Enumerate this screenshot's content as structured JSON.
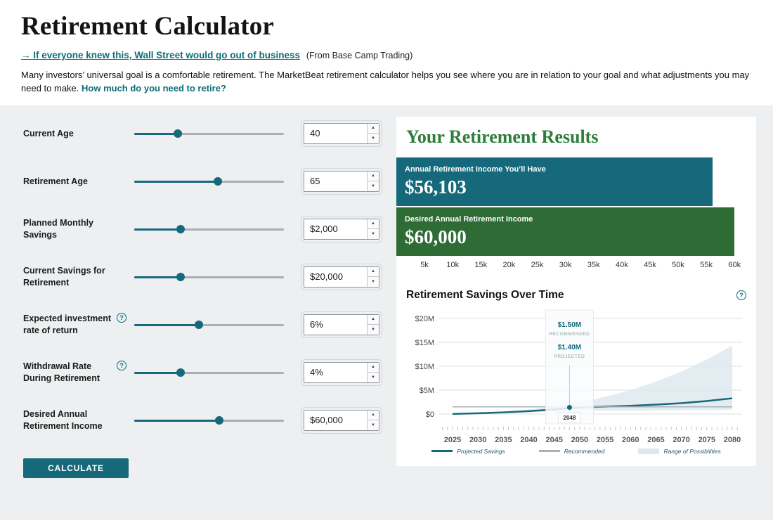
{
  "page": {
    "title": "Retirement Calculator",
    "promo_link": "→ If everyone knew this, Wall Street would go out of business",
    "promo_source": "(From Base Camp Trading)",
    "intro_text": "Many investors’ universal goal is a comfortable retirement. The MarketBeat retirement calculator helps you see where you are in relation to your goal and what adjustments you may need to make.",
    "intro_link": "How much do you need to retire?"
  },
  "form": {
    "fields": [
      {
        "label": "Current Age",
        "value": "40",
        "pct": 29,
        "help": false
      },
      {
        "label": "Retirement Age",
        "value": "65",
        "pct": 56,
        "help": false
      },
      {
        "label": "Planned Monthly Savings",
        "value": "$2,000",
        "pct": 31,
        "help": false
      },
      {
        "label": "Current Savings for Retirement",
        "value": "$20,000",
        "pct": 31,
        "help": false
      },
      {
        "label": "Expected investment rate of return",
        "value": "6%",
        "pct": 43,
        "help": true
      },
      {
        "label": "Withdrawal Rate During Retirement",
        "value": "4%",
        "pct": 31,
        "help": true
      },
      {
        "label": "Desired Annual Retirement Income",
        "value": "$60,000",
        "pct": 57,
        "help": false
      }
    ],
    "calculate_label": "CALCULATE"
  },
  "results": {
    "title": "Your Retirement Results"
  },
  "colors": {
    "accent_teal": "#15697a",
    "accent_green": "#2e6b35",
    "link_teal": "#0b6d78",
    "results_title_green": "#2e7d3c"
  },
  "chart_data": [
    {
      "type": "bar",
      "orientation": "horizontal",
      "title": "Your Retirement Results",
      "xlim": [
        0,
        60000
      ],
      "bars": [
        {
          "label": "Annual Retirement Income You’ll Have",
          "value": 56103,
          "display": "$56,103",
          "color": "#15697a"
        },
        {
          "label": "Desired Annual Retirement Income",
          "value": 60000,
          "display": "$60,000",
          "color": "#2e6b35"
        }
      ],
      "ticks": [
        {
          "value": 5000,
          "label": "5k"
        },
        {
          "value": 10000,
          "label": "10k"
        },
        {
          "value": 15000,
          "label": "15k"
        },
        {
          "value": 20000,
          "label": "20k"
        },
        {
          "value": 25000,
          "label": "25k"
        },
        {
          "value": 30000,
          "label": "30k"
        },
        {
          "value": 35000,
          "label": "35k"
        },
        {
          "value": 40000,
          "label": "40k"
        },
        {
          "value": 45000,
          "label": "45k"
        },
        {
          "value": 50000,
          "label": "50k"
        },
        {
          "value": 55000,
          "label": "55k"
        },
        {
          "value": 60000,
          "label": "60k"
        }
      ]
    },
    {
      "type": "line",
      "title": "Retirement Savings Over Time",
      "x_years": [
        2025,
        2030,
        2035,
        2040,
        2045,
        2050,
        2055,
        2060,
        2065,
        2070,
        2075,
        2080
      ],
      "x_tick_labels": [
        "2025",
        "2030",
        "2035",
        "2040",
        "2045",
        "2050",
        "2055",
        "2060",
        "2065",
        "2070",
        "2075",
        "2080"
      ],
      "ylim_millions": [
        0,
        20
      ],
      "y_gridlines_millions": [
        0,
        5,
        10,
        15,
        20
      ],
      "y_ticks": [
        "$0",
        "$5M",
        "$10M",
        "$15M",
        "$20M"
      ],
      "series": [
        {
          "name": "Projected Savings",
          "color": "#15697a",
          "values_millions": [
            0.02,
            0.16,
            0.35,
            0.61,
            0.95,
            1.4,
            1.54,
            1.72,
            1.96,
            2.28,
            2.72,
            3.3
          ]
        },
        {
          "name": "Recommended",
          "color": "#a9b2b7",
          "values_millions": [
            1.5,
            1.5,
            1.5,
            1.5,
            1.5,
            1.5,
            1.5,
            1.5,
            1.5,
            1.5,
            1.5,
            1.5
          ]
        }
      ],
      "band": {
        "name": "Range of Possibilities",
        "color": "#dce8ed",
        "low": [
          0.02,
          0.1,
          0.2,
          0.35,
          0.5,
          0.7,
          0.72,
          0.75,
          0.78,
          0.8,
          0.85,
          0.9
        ],
        "high": [
          0.02,
          0.2,
          0.5,
          0.95,
          1.6,
          2.5,
          3.6,
          5.0,
          6.8,
          8.9,
          11.4,
          14.3
        ]
      },
      "tooltip": {
        "year": "2048",
        "recommended": "$1.50M",
        "recommended_label": "RECOMMENDED",
        "projected": "$1.40M",
        "projected_label": "PROJECTED"
      },
      "legend": [
        {
          "label": "Projected Savings",
          "color": "#15697a"
        },
        {
          "label": "Recommended",
          "color": "#a9b2b7"
        },
        {
          "label": "Range of Possibilities",
          "color": "#dce8ed"
        }
      ]
    }
  ]
}
